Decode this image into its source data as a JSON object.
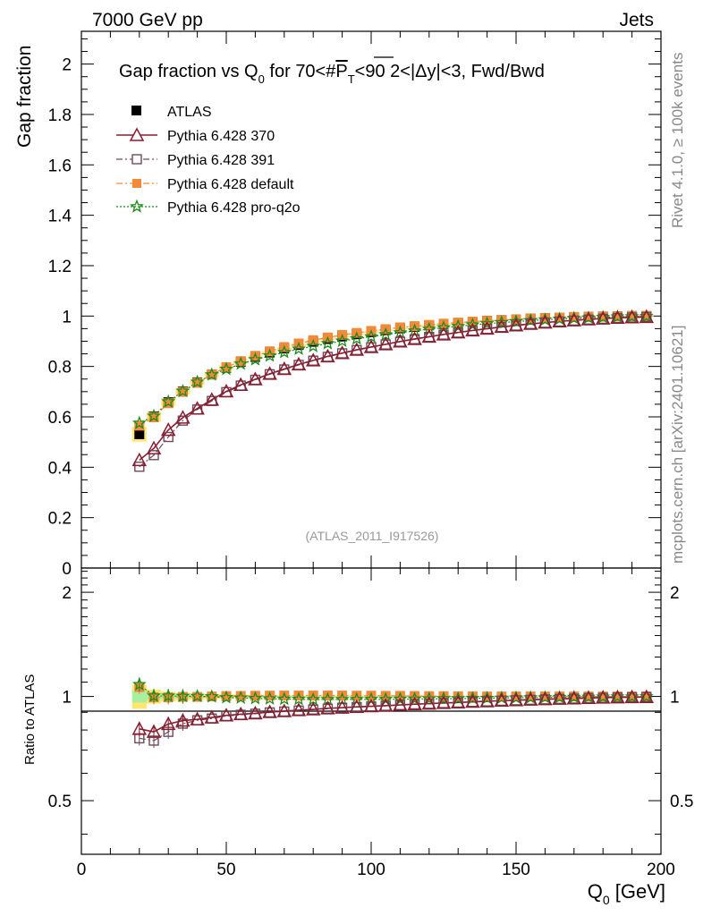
{
  "header": {
    "left_title": "7000 GeV pp",
    "right_title": "Jets"
  },
  "side_labels": {
    "rivet": "Rivet 4.1.0, ≥ 100k events",
    "mcplots": "mcplots.cern.ch [arXiv:2401.10621]"
  },
  "chart_data": {
    "type": "scatter",
    "title_parts": {
      "prefix": "Gap fraction vs Q",
      "q_sub": "0",
      "mid": " for 70<#",
      "p": "P",
      "t_sub": "T",
      "suffix": "<90  2<|Δy|<3, Fwd/Bwd"
    },
    "watermark": "(ATLAS_2011_I917526)",
    "ylabel": "Gap fraction",
    "ratio_ylabel": "Ratio to ATLAS",
    "xlabel_parts": {
      "main": "Q",
      "sub": "0",
      "unit": " [GeV]"
    },
    "xlim": [
      0,
      200
    ],
    "ylim": [
      0,
      2.13
    ],
    "ratio_ylim": [
      0.35,
      2.35
    ],
    "x_ticks": [
      "0",
      "50",
      "100",
      "150",
      "200"
    ],
    "y_ticks": [
      "0",
      "0.2",
      "0.4",
      "0.6",
      "0.8",
      "1",
      "1.2",
      "1.4",
      "1.6",
      "1.8",
      "2"
    ],
    "ratio_ticks": [
      "0.5",
      "1",
      "2"
    ],
    "x": [
      20,
      25,
      30,
      35,
      40,
      45,
      50,
      55,
      60,
      65,
      70,
      75,
      80,
      85,
      90,
      95,
      100,
      105,
      110,
      115,
      120,
      125,
      130,
      135,
      140,
      145,
      150,
      155,
      160,
      165,
      170,
      175,
      180,
      185,
      190,
      195
    ],
    "series": [
      {
        "name": "ATLAS",
        "color": "#000000",
        "marker": "filled-square",
        "values": [
          0.531,
          0.601,
          0.658,
          0.701,
          0.737,
          0.768,
          0.795,
          0.818,
          0.838,
          0.855,
          0.871,
          0.885,
          0.898,
          0.909,
          0.919,
          0.928,
          0.936,
          0.944,
          0.951,
          0.957,
          0.963,
          0.968,
          0.973,
          0.977,
          0.981,
          0.984,
          0.987,
          0.99,
          0.992,
          0.994,
          0.996,
          0.997,
          0.998,
          0.999,
          1.0,
          1.0
        ],
        "band": [
          0.03,
          0.02,
          0.015,
          0.012,
          0.01,
          0.009,
          0.008,
          0.007,
          0.006,
          0.006,
          0.005,
          0.005,
          0.005,
          0.004,
          0.004,
          0.004,
          0.004,
          0.003,
          0.003,
          0.003,
          0.003,
          0.003,
          0.003,
          0.002,
          0.002,
          0.002,
          0.002,
          0.002,
          0.002,
          0.002,
          0.002,
          0.002,
          0.002,
          0.002,
          0.002,
          0.002
        ]
      },
      {
        "name": "Pythia 6.428 370",
        "color": "#8b1c2e",
        "marker": "open-triangle",
        "line": "solid",
        "values": [
          0.428,
          0.475,
          0.548,
          0.597,
          0.633,
          0.668,
          0.701,
          0.727,
          0.749,
          0.771,
          0.79,
          0.808,
          0.824,
          0.84,
          0.853,
          0.866,
          0.877,
          0.888,
          0.899,
          0.909,
          0.918,
          0.927,
          0.935,
          0.943,
          0.95,
          0.957,
          0.963,
          0.969,
          0.974,
          0.979,
          0.983,
          0.987,
          0.99,
          0.993,
          0.995,
          0.996
        ]
      },
      {
        "name": "Pythia 6.428 391",
        "color": "#6e4a5a",
        "marker": "open-square",
        "line": "dashdot",
        "values": [
          0.402,
          0.448,
          0.52,
          0.585,
          0.629,
          0.663,
          0.698,
          0.724,
          0.747,
          0.769,
          0.788,
          0.806,
          0.823,
          0.838,
          0.852,
          0.865,
          0.876,
          0.887,
          0.898,
          0.908,
          0.917,
          0.926,
          0.934,
          0.942,
          0.949,
          0.956,
          0.962,
          0.968,
          0.973,
          0.978,
          0.982,
          0.986,
          0.989,
          0.992,
          0.994,
          0.996
        ]
      },
      {
        "name": "Pythia 6.428 default",
        "color": "#f28a3a",
        "marker": "filled-square",
        "line": "dashdot",
        "values": [
          0.565,
          0.598,
          0.654,
          0.699,
          0.735,
          0.768,
          0.797,
          0.821,
          0.842,
          0.86,
          0.877,
          0.891,
          0.904,
          0.915,
          0.925,
          0.933,
          0.941,
          0.948,
          0.955,
          0.96,
          0.965,
          0.97,
          0.974,
          0.978,
          0.981,
          0.984,
          0.987,
          0.99,
          0.992,
          0.994,
          0.996,
          0.997,
          0.998,
          0.999,
          1.0,
          1.001
        ]
      },
      {
        "name": "Pythia 6.428 pro-q2o",
        "color": "#1a8c1a",
        "marker": "star",
        "line": "dotted",
        "values": [
          0.575,
          0.603,
          0.66,
          0.702,
          0.738,
          0.767,
          0.789,
          0.81,
          0.827,
          0.842,
          0.856,
          0.869,
          0.88,
          0.891,
          0.901,
          0.91,
          0.918,
          0.926,
          0.934,
          0.941,
          0.948,
          0.954,
          0.959,
          0.965,
          0.97,
          0.974,
          0.978,
          0.982,
          0.985,
          0.988,
          0.991,
          0.993,
          0.995,
          0.997,
          0.998,
          0.999
        ]
      }
    ]
  }
}
